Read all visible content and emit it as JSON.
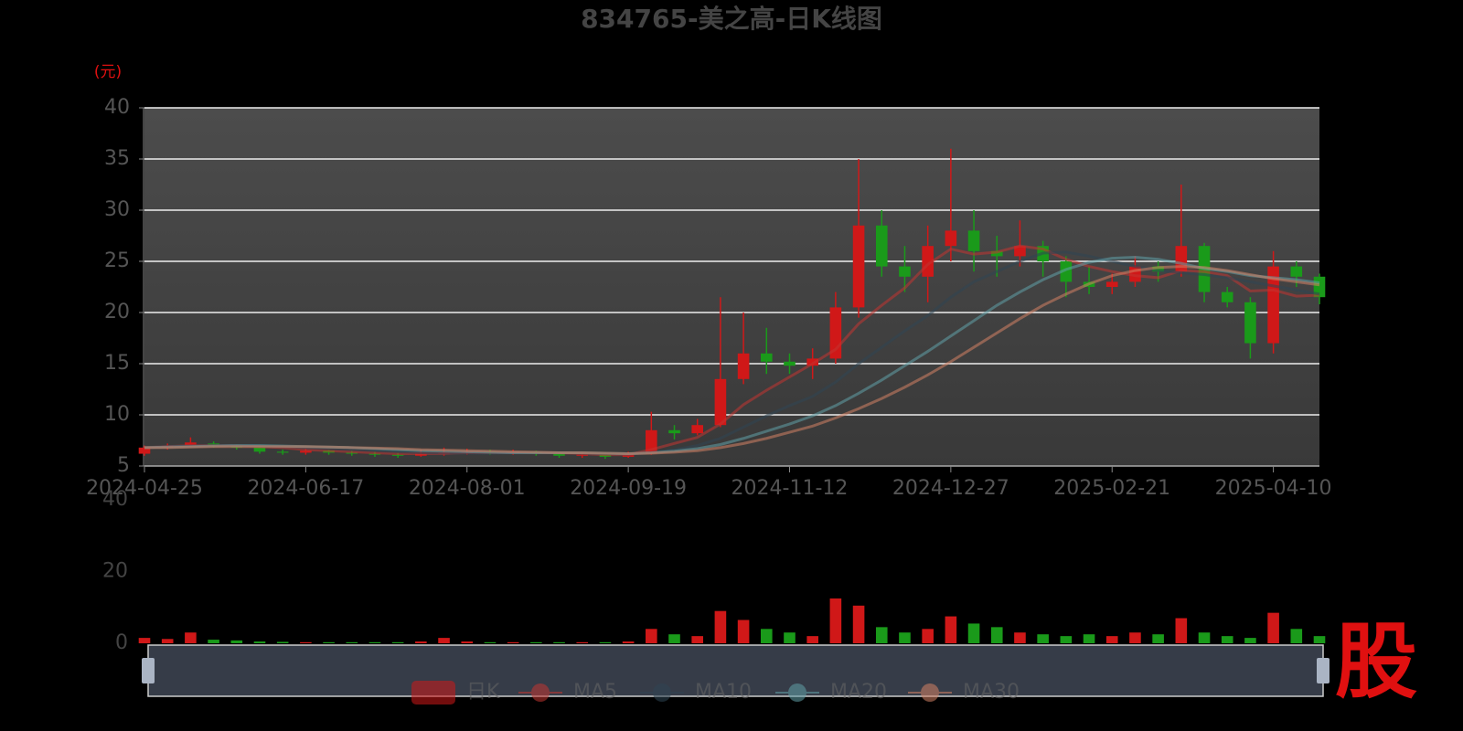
{
  "chart_data": [
    {
      "type": "candlestick",
      "title": "834765-美之高-日K线图",
      "y_label": "(元)",
      "categories": [
        "2024-04-25",
        null,
        null,
        null,
        null,
        null,
        null,
        "2024-06-17",
        null,
        null,
        null,
        null,
        null,
        null,
        "2024-08-01",
        null,
        null,
        null,
        null,
        null,
        null,
        "2024-09-19",
        null,
        null,
        null,
        null,
        null,
        null,
        "2024-11-12",
        null,
        null,
        null,
        null,
        null,
        null,
        "2024-12-27",
        null,
        null,
        null,
        null,
        null,
        null,
        "2025-02-21",
        null,
        null,
        null,
        null,
        null,
        null,
        "2025-04-10",
        null,
        null
      ],
      "series": [
        {
          "name": "日K",
          "type": "candlestick",
          "up_color": "#d01818",
          "down_color": "#1a9a1a",
          "open": [
            6.2,
            6.8,
            7.0,
            7.2,
            7.0,
            6.8,
            6.4,
            6.3,
            6.5,
            6.3,
            6.2,
            6.1,
            6.0,
            6.2,
            6.3,
            6.4,
            6.3,
            6.4,
            6.2,
            6.0,
            6.1,
            5.9,
            6.2,
            8.5,
            8.2,
            9.0,
            13.5,
            16.0,
            15.2,
            14.8,
            15.5,
            20.5,
            28.5,
            24.5,
            23.5,
            26.5,
            28.0,
            26.0,
            25.5,
            26.5,
            25.0,
            23.0,
            22.5,
            23.0,
            24.5,
            24.0,
            26.5,
            22.0,
            21.0,
            17.0,
            24.5,
            23.5
          ],
          "close": [
            6.8,
            7.0,
            7.3,
            7.0,
            6.8,
            6.4,
            6.3,
            6.5,
            6.3,
            6.2,
            6.1,
            6.0,
            6.2,
            6.3,
            6.4,
            6.3,
            6.4,
            6.2,
            6.0,
            6.1,
            5.9,
            6.2,
            8.5,
            8.2,
            9.0,
            13.5,
            16.0,
            15.2,
            14.8,
            15.5,
            20.5,
            28.5,
            24.5,
            23.5,
            26.5,
            28.0,
            26.0,
            25.5,
            26.5,
            25.0,
            23.0,
            22.5,
            23.0,
            24.5,
            24.0,
            26.5,
            22.0,
            21.0,
            17.0,
            24.5,
            23.5,
            21.5
          ],
          "low": [
            6.0,
            6.6,
            6.9,
            6.8,
            6.6,
            6.2,
            6.1,
            6.1,
            6.1,
            6.0,
            5.9,
            5.8,
            5.9,
            6.0,
            6.1,
            6.1,
            6.1,
            6.0,
            5.8,
            5.8,
            5.7,
            5.8,
            6.1,
            7.6,
            8.0,
            8.8,
            13.0,
            14.0,
            14.0,
            13.5,
            15.0,
            19.5,
            23.5,
            22.0,
            21.0,
            25.0,
            24.0,
            23.5,
            24.5,
            23.5,
            21.5,
            21.8,
            21.8,
            22.5,
            23.0,
            23.5,
            21.0,
            20.5,
            15.5,
            16.0,
            22.5,
            20.8
          ],
          "high": [
            7.0,
            7.2,
            7.8,
            7.4,
            7.1,
            6.9,
            6.6,
            6.7,
            6.6,
            6.5,
            6.4,
            6.3,
            6.6,
            6.8,
            6.7,
            6.6,
            6.6,
            6.5,
            6.3,
            6.3,
            6.2,
            6.4,
            10.3,
            9.0,
            9.6,
            21.5,
            20.0,
            18.5,
            16.0,
            16.5,
            22.0,
            35.0,
            30.0,
            26.5,
            28.5,
            36.0,
            30.0,
            27.5,
            29.0,
            27.0,
            25.5,
            24.5,
            23.8,
            25.5,
            25.0,
            32.5,
            26.8,
            22.5,
            21.5,
            26.0,
            25.0,
            23.8
          ]
        },
        {
          "name": "MA5",
          "type": "line",
          "color": "#c23531",
          "values": [
            6.8,
            6.9,
            7.0,
            7.0,
            7.0,
            6.9,
            6.8,
            6.6,
            6.5,
            6.4,
            6.3,
            6.2,
            6.2,
            6.2,
            6.3,
            6.3,
            6.3,
            6.3,
            6.3,
            6.2,
            6.1,
            6.1,
            6.6,
            7.2,
            7.8,
            9.1,
            11.0,
            12.4,
            13.7,
            15.0,
            16.4,
            18.9,
            20.7,
            22.4,
            24.7,
            26.2,
            25.7,
            25.9,
            26.5,
            26.2,
            25.2,
            24.5,
            24.0,
            23.6,
            23.4,
            24.1,
            24.0,
            23.6,
            22.1,
            22.2,
            21.6,
            21.7
          ]
        },
        {
          "name": "MA10",
          "type": "line",
          "color": "#2f4554",
          "values": [
            6.8,
            6.9,
            6.95,
            7.0,
            7.0,
            6.95,
            6.9,
            6.8,
            6.7,
            6.6,
            6.5,
            6.4,
            6.3,
            6.25,
            6.25,
            6.25,
            6.3,
            6.3,
            6.3,
            6.25,
            6.2,
            6.15,
            6.3,
            6.6,
            7.0,
            7.7,
            8.8,
            9.9,
            10.9,
            11.8,
            13.2,
            15.0,
            16.6,
            18.2,
            19.7,
            21.5,
            23.0,
            24.0,
            25.0,
            25.8,
            25.9,
            25.5,
            25.0,
            24.5,
            24.1,
            23.9,
            23.7,
            23.4,
            23.0,
            22.6,
            22.2,
            21.8
          ]
        },
        {
          "name": "MA20",
          "type": "line",
          "color": "#61a0a8",
          "values": [
            6.8,
            6.85,
            6.9,
            6.95,
            7.0,
            7.0,
            6.95,
            6.9,
            6.85,
            6.8,
            6.7,
            6.6,
            6.5,
            6.45,
            6.4,
            6.35,
            6.3,
            6.3,
            6.3,
            6.3,
            6.25,
            6.2,
            6.3,
            6.45,
            6.7,
            7.1,
            7.7,
            8.4,
            9.1,
            9.9,
            10.9,
            12.1,
            13.4,
            14.8,
            16.2,
            17.7,
            19.2,
            20.7,
            22.0,
            23.2,
            24.2,
            24.9,
            25.3,
            25.4,
            25.2,
            24.8,
            24.3,
            24.0,
            23.6,
            23.4,
            23.2,
            22.9
          ]
        },
        {
          "name": "MA30",
          "type": "line",
          "color": "#d48265",
          "values": [
            6.8,
            6.8,
            6.85,
            6.9,
            6.9,
            6.9,
            6.9,
            6.9,
            6.85,
            6.8,
            6.75,
            6.7,
            6.6,
            6.55,
            6.5,
            6.45,
            6.4,
            6.35,
            6.3,
            6.3,
            6.25,
            6.2,
            6.25,
            6.35,
            6.5,
            6.8,
            7.2,
            7.7,
            8.3,
            8.9,
            9.7,
            10.6,
            11.6,
            12.7,
            13.9,
            15.2,
            16.6,
            18.0,
            19.4,
            20.7,
            21.8,
            22.8,
            23.6,
            24.1,
            24.4,
            24.5,
            24.4,
            24.1,
            23.7,
            23.3,
            23.0,
            22.7
          ]
        }
      ],
      "ylim": [
        5,
        40
      ],
      "yticks": [
        5,
        10,
        15,
        20,
        25,
        30,
        35,
        40
      ],
      "grid": true
    },
    {
      "type": "bar",
      "ylim": [
        0,
        40
      ],
      "yticks": [
        0,
        20,
        40
      ],
      "up_color": "#d01818",
      "down_color": "#1a9a1a",
      "values": [
        1.5,
        1.2,
        3.0,
        1.0,
        0.8,
        0.5,
        0.4,
        0.3,
        0.3,
        0.3,
        0.3,
        0.3,
        0.5,
        1.5,
        0.5,
        0.3,
        0.3,
        0.3,
        0.3,
        0.3,
        0.3,
        0.5,
        4.0,
        2.5,
        2.0,
        9.0,
        6.5,
        4.0,
        3.0,
        2.0,
        12.5,
        10.5,
        4.5,
        3.0,
        4.0,
        7.5,
        5.5,
        4.5,
        3.0,
        2.5,
        2.0,
        2.5,
        2.0,
        3.0,
        2.5,
        7.0,
        3.0,
        2.0,
        1.5,
        8.5,
        4.0,
        2.0
      ]
    }
  ],
  "watermark": "股"
}
